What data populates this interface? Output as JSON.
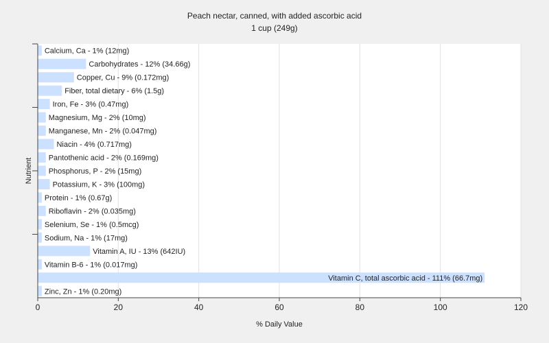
{
  "chart_data": {
    "type": "bar",
    "orientation": "horizontal",
    "title": "Peach nectar, canned, with added ascorbic acid",
    "subtitle": "1 cup (249g)",
    "xlabel": "% Daily Value",
    "ylabel": "Nutrient",
    "xlim": [
      0,
      120
    ],
    "xticks": [
      0,
      20,
      40,
      60,
      80,
      100,
      120
    ],
    "grid": true,
    "bar_color": "#cce0ff",
    "categories": [
      "Calcium, Ca",
      "Carbohydrates",
      "Copper, Cu",
      "Fiber, total dietary",
      "Iron, Fe",
      "Magnesium, Mg",
      "Manganese, Mn",
      "Niacin",
      "Pantothenic acid",
      "Phosphorus, P",
      "Potassium, K",
      "Protein",
      "Riboflavin",
      "Selenium, Se",
      "Sodium, Na",
      "Vitamin A, IU",
      "Vitamin B-6",
      "Vitamin C, total ascorbic acid",
      "Zinc, Zn"
    ],
    "values": [
      1,
      12,
      9,
      6,
      3,
      2,
      2,
      4,
      2,
      2,
      3,
      1,
      2,
      1,
      1,
      13,
      1,
      111,
      1
    ],
    "labels": [
      "Calcium, Ca - 1% (12mg)",
      "Carbohydrates - 12% (34.66g)",
      "Copper, Cu - 9% (0.172mg)",
      "Fiber, total dietary - 6% (1.5g)",
      "Iron, Fe - 3% (0.47mg)",
      "Magnesium, Mg - 2% (10mg)",
      "Manganese, Mn - 2% (0.047mg)",
      "Niacin - 4% (0.717mg)",
      "Pantothenic acid - 2% (0.169mg)",
      "Phosphorus, P - 2% (15mg)",
      "Potassium, K - 3% (100mg)",
      "Protein - 1% (0.67g)",
      "Riboflavin - 2% (0.035mg)",
      "Selenium, Se - 1% (0.5mcg)",
      "Sodium, Na - 1% (17mg)",
      "Vitamin A, IU - 13% (642IU)",
      "Vitamin B-6 - 1% (0.017mg)",
      "Vitamin C, total ascorbic acid - 111% (66.7mg)",
      "Zinc, Zn - 1% (0.20mg)"
    ]
  }
}
